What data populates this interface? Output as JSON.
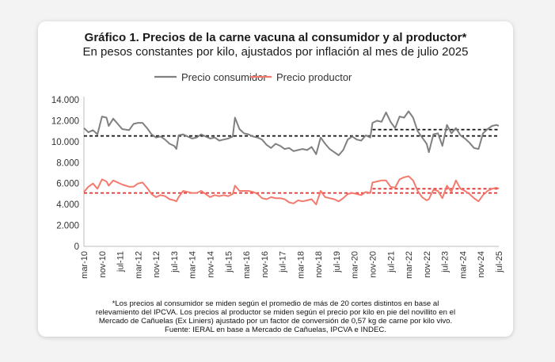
{
  "chart_data": {
    "type": "line",
    "title": "Gráfico 1. Precios de la carne vacuna al consumidor y al productor*",
    "subtitle": "En pesos constantes por kilo, ajustados por inflación al mes de julio 2025",
    "xlabel": "",
    "ylabel": "",
    "ylim": [
      0,
      14000
    ],
    "yticks": [
      "14.000",
      "12.000",
      "10.000",
      "8.000",
      "6.000",
      "4.000",
      "2.000",
      "0"
    ],
    "ytick_values": [
      14000,
      12000,
      10000,
      8000,
      6000,
      4000,
      2000,
      0
    ],
    "x_start": "mar-10",
    "x_end": "jul-25",
    "xticks": [
      "mar-10",
      "nov-10",
      "jul-11",
      "mar-12",
      "nov-12",
      "jul-13",
      "mar-14",
      "nov-14",
      "jul-15",
      "mar-16",
      "nov-16",
      "jul-17",
      "mar-18",
      "nov-18",
      "jul-19",
      "mar-20",
      "nov-20",
      "jul-21",
      "mar-22",
      "nov-22",
      "jul-23",
      "mar-24",
      "nov-24",
      "jul-25"
    ],
    "grid": false,
    "legend_position": "top",
    "series": [
      {
        "name": "Precio consumidor",
        "color": "#808080",
        "points": [
          [
            "mar-10",
            11300
          ],
          [
            "may-10",
            10900
          ],
          [
            "jul-10",
            11100
          ],
          [
            "sep-10",
            10700
          ],
          [
            "nov-10",
            12400
          ],
          [
            "ene-11",
            12300
          ],
          [
            "feb-11",
            11500
          ],
          [
            "abr-11",
            12200
          ],
          [
            "jun-11",
            11700
          ],
          [
            "ago-11",
            11200
          ],
          [
            "nov-11",
            11100
          ],
          [
            "ene-12",
            11700
          ],
          [
            "mar-12",
            11800
          ],
          [
            "may-12",
            11800
          ],
          [
            "jul-12",
            11300
          ],
          [
            "sep-12",
            10700
          ],
          [
            "nov-12",
            10400
          ],
          [
            "ene-13",
            10500
          ],
          [
            "mar-13",
            10200
          ],
          [
            "may-13",
            9800
          ],
          [
            "jul-13",
            9600
          ],
          [
            "ago-13",
            9300
          ],
          [
            "sep-13",
            10600
          ],
          [
            "nov-13",
            10700
          ],
          [
            "ene-14",
            10500
          ],
          [
            "mar-14",
            10300
          ],
          [
            "may-14",
            10400
          ],
          [
            "jul-14",
            10700
          ],
          [
            "sep-14",
            10500
          ],
          [
            "nov-14",
            10300
          ],
          [
            "ene-15",
            10400
          ],
          [
            "mar-15",
            10100
          ],
          [
            "may-15",
            10200
          ],
          [
            "jul-15",
            10300
          ],
          [
            "sep-15",
            10500
          ],
          [
            "oct-15",
            12300
          ],
          [
            "dic-15",
            11200
          ],
          [
            "feb-16",
            10800
          ],
          [
            "abr-16",
            10700
          ],
          [
            "jun-16",
            10500
          ],
          [
            "ago-16",
            10400
          ],
          [
            "oct-16",
            10200
          ],
          [
            "dic-16",
            9700
          ],
          [
            "feb-17",
            9400
          ],
          [
            "abr-17",
            9800
          ],
          [
            "jun-17",
            9600
          ],
          [
            "ago-17",
            9300
          ],
          [
            "oct-17",
            9400
          ],
          [
            "dic-17",
            9100
          ],
          [
            "feb-18",
            9200
          ],
          [
            "abr-18",
            9300
          ],
          [
            "jun-18",
            9200
          ],
          [
            "ago-18",
            9500
          ],
          [
            "oct-18",
            8800
          ],
          [
            "dic-18",
            10400
          ],
          [
            "feb-19",
            9800
          ],
          [
            "abr-19",
            9300
          ],
          [
            "jun-19",
            9000
          ],
          [
            "ago-19",
            8700
          ],
          [
            "oct-19",
            9200
          ],
          [
            "dic-19",
            10200
          ],
          [
            "feb-20",
            10500
          ],
          [
            "abr-20",
            10200
          ],
          [
            "jun-20",
            10100
          ],
          [
            "ago-20",
            10600
          ],
          [
            "oct-20",
            10400
          ],
          [
            "nov-20",
            11800
          ],
          [
            "ene-21",
            12000
          ],
          [
            "mar-21",
            11900
          ],
          [
            "may-21",
            12800
          ],
          [
            "jul-21",
            11900
          ],
          [
            "sep-21",
            11300
          ],
          [
            "nov-21",
            12400
          ],
          [
            "ene-22",
            12300
          ],
          [
            "mar-22",
            12900
          ],
          [
            "may-22",
            12300
          ],
          [
            "jul-22",
            11000
          ],
          [
            "sep-22",
            10400
          ],
          [
            "nov-22",
            9800
          ],
          [
            "dic-22",
            9000
          ],
          [
            "feb-23",
            10700
          ],
          [
            "abr-23",
            10800
          ],
          [
            "jun-23",
            9600
          ],
          [
            "ago-23",
            11600
          ],
          [
            "oct-23",
            10800
          ],
          [
            "dic-23",
            11300
          ],
          [
            "feb-24",
            10600
          ],
          [
            "abr-24",
            10300
          ],
          [
            "jun-24",
            9900
          ],
          [
            "ago-24",
            9400
          ],
          [
            "oct-24",
            9300
          ],
          [
            "dic-24",
            10800
          ],
          [
            "feb-25",
            11200
          ],
          [
            "abr-25",
            11500
          ],
          [
            "jun-25",
            11600
          ],
          [
            "jul-25",
            11500
          ]
        ]
      },
      {
        "name": "Precio productor",
        "color": "#f37a6e",
        "points": [
          [
            "mar-10",
            5200
          ],
          [
            "may-10",
            5700
          ],
          [
            "jul-10",
            6000
          ],
          [
            "sep-10",
            5500
          ],
          [
            "nov-10",
            6400
          ],
          [
            "ene-11",
            6200
          ],
          [
            "feb-11",
            5800
          ],
          [
            "abr-11",
            6300
          ],
          [
            "jun-11",
            6100
          ],
          [
            "ago-11",
            5900
          ],
          [
            "nov-11",
            5700
          ],
          [
            "ene-12",
            5700
          ],
          [
            "mar-12",
            6000
          ],
          [
            "may-12",
            6100
          ],
          [
            "jul-12",
            5600
          ],
          [
            "sep-12",
            5000
          ],
          [
            "nov-12",
            4700
          ],
          [
            "ene-13",
            4900
          ],
          [
            "mar-13",
            4800
          ],
          [
            "may-13",
            4500
          ],
          [
            "jul-13",
            4400
          ],
          [
            "ago-13",
            4300
          ],
          [
            "sep-13",
            4700
          ],
          [
            "nov-13",
            5300
          ],
          [
            "ene-14",
            5200
          ],
          [
            "mar-14",
            5100
          ],
          [
            "may-14",
            5100
          ],
          [
            "jul-14",
            5300
          ],
          [
            "sep-14",
            5000
          ],
          [
            "nov-14",
            4700
          ],
          [
            "ene-15",
            4900
          ],
          [
            "mar-15",
            4800
          ],
          [
            "may-15",
            4900
          ],
          [
            "jul-15",
            4800
          ],
          [
            "sep-15",
            5000
          ],
          [
            "oct-15",
            5800
          ],
          [
            "dic-15",
            5300
          ],
          [
            "feb-16",
            5300
          ],
          [
            "abr-16",
            5300
          ],
          [
            "jun-16",
            5200
          ],
          [
            "ago-16",
            5000
          ],
          [
            "oct-16",
            4600
          ],
          [
            "dic-16",
            4500
          ],
          [
            "feb-17",
            4700
          ],
          [
            "abr-17",
            4600
          ],
          [
            "jun-17",
            4600
          ],
          [
            "ago-17",
            4500
          ],
          [
            "oct-17",
            4200
          ],
          [
            "dic-17",
            4100
          ],
          [
            "feb-18",
            4400
          ],
          [
            "abr-18",
            4300
          ],
          [
            "jun-18",
            4400
          ],
          [
            "ago-18",
            4500
          ],
          [
            "oct-18",
            4000
          ],
          [
            "dic-18",
            5300
          ],
          [
            "feb-19",
            4700
          ],
          [
            "abr-19",
            4600
          ],
          [
            "jun-19",
            4500
          ],
          [
            "ago-19",
            4300
          ],
          [
            "oct-19",
            4600
          ],
          [
            "dic-19",
            5000
          ],
          [
            "feb-20",
            5100
          ],
          [
            "abr-20",
            5000
          ],
          [
            "jun-20",
            4900
          ],
          [
            "ago-20",
            5200
          ],
          [
            "oct-20",
            5100
          ],
          [
            "nov-20",
            6100
          ],
          [
            "ene-21",
            6200
          ],
          [
            "mar-21",
            6300
          ],
          [
            "may-21",
            6300
          ],
          [
            "jul-21",
            5700
          ],
          [
            "sep-21",
            5600
          ],
          [
            "nov-21",
            6400
          ],
          [
            "ene-22",
            6600
          ],
          [
            "mar-22",
            6700
          ],
          [
            "may-22",
            6300
          ],
          [
            "jul-22",
            5300
          ],
          [
            "sep-22",
            4700
          ],
          [
            "nov-22",
            4400
          ],
          [
            "dic-22",
            4500
          ],
          [
            "feb-23",
            5400
          ],
          [
            "abr-23",
            5300
          ],
          [
            "jun-23",
            4600
          ],
          [
            "ago-23",
            5800
          ],
          [
            "oct-23",
            5200
          ],
          [
            "dic-23",
            6300
          ],
          [
            "feb-24",
            5500
          ],
          [
            "abr-24",
            5300
          ],
          [
            "jun-24",
            5000
          ],
          [
            "ago-24",
            4600
          ],
          [
            "oct-24",
            4300
          ],
          [
            "dic-24",
            4900
          ],
          [
            "feb-25",
            5300
          ],
          [
            "abr-25",
            5500
          ],
          [
            "jun-25",
            5600
          ],
          [
            "jul-25",
            5500
          ]
        ]
      }
    ],
    "reference_lines": [
      {
        "series": "Precio consumidor",
        "value": 10550,
        "from": "mar-10",
        "to": "jul-25",
        "color": "#111111"
      },
      {
        "series": "Precio consumidor",
        "value": 11150,
        "from": "nov-20",
        "to": "jul-25",
        "color": "#111111"
      },
      {
        "series": "Precio productor",
        "value": 5100,
        "from": "mar-10",
        "to": "jul-25",
        "color": "#e03131"
      },
      {
        "series": "Precio productor",
        "value": 5500,
        "from": "nov-20",
        "to": "jul-25",
        "color": "#e03131"
      }
    ]
  },
  "footnote": [
    "*Los precios al consumidor se miden según el promedio de más de 20 cortes distintos en base al",
    "relevamiento del IPCVA. Los precios al productor se miden según el precio por kilo en pie del novillito en el",
    "Mercado de Cañuelas (Ex Liniers) ajustado por un factor de conversión de 0,57 kg de carne por kilo vivo.",
    "Fuente: IERAL en base a Mercado de Cañuelas, IPCVA e INDEC."
  ]
}
